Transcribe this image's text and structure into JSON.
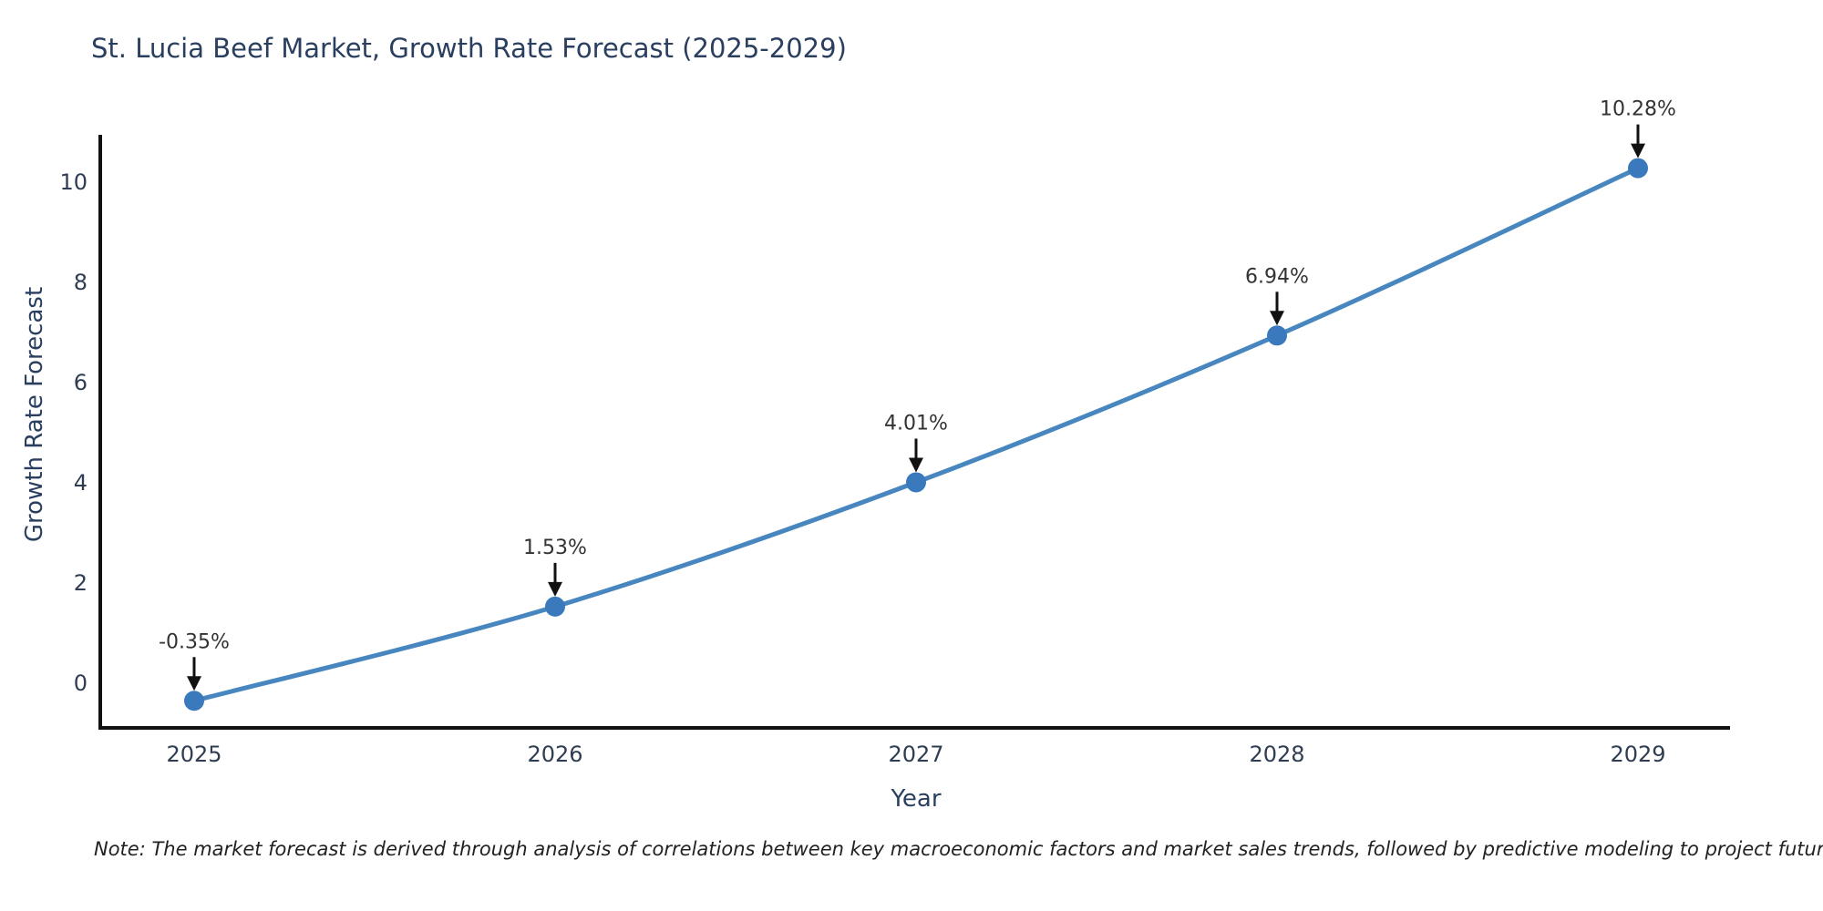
{
  "title": "St. Lucia Beef Market, Growth Rate Forecast (2025-2029)",
  "note": "Note: The market forecast is derived through analysis of correlations between key macroeconomic factors and market sales trends, followed by predictive modeling to project future sales",
  "chart_data": {
    "type": "line",
    "title": "St. Lucia Beef Market, Growth Rate Forecast (2025-2029)",
    "xlabel": "Year",
    "ylabel": "Growth Rate Forecast",
    "x": [
      2025,
      2026,
      2027,
      2028,
      2029
    ],
    "values": [
      -0.35,
      1.53,
      4.01,
      6.94,
      10.28
    ],
    "point_labels": [
      "-0.35%",
      "1.53%",
      "4.01%",
      "6.94%",
      "10.28%"
    ],
    "xticks": [
      "2025",
      "2026",
      "2027",
      "2028",
      "2029"
    ],
    "yticks": [
      0,
      2,
      4,
      6,
      8,
      10
    ],
    "ylim": [
      -0.93,
      10.9
    ],
    "grid": false,
    "legend": false,
    "annotation_style": "value label with downward black arrow to marker",
    "colors": {
      "line": "#4786bf",
      "marker": "#3a7abc",
      "axis": "#111111",
      "axis_text": "#2f3d52",
      "title_text": "#2a3f5f",
      "annotation_text": "#333333",
      "arrow": "#111111",
      "background": "#ffffff"
    }
  }
}
